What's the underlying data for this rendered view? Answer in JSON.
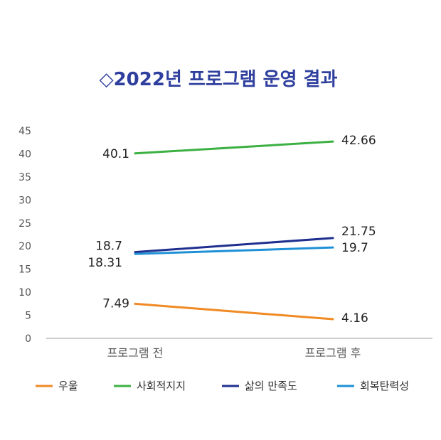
{
  "chart_data": {
    "type": "line",
    "title": "◇2022년 프로그램 운영 결과",
    "categories": [
      "프로그램 전",
      "프로그램 후"
    ],
    "ylim": [
      0,
      45
    ],
    "yticks": [
      0,
      5,
      10,
      15,
      20,
      25,
      30,
      35,
      40,
      45
    ],
    "grid": false,
    "legend_position": "bottom",
    "series": [
      {
        "name": "우울",
        "values": [
          7.49,
          4.16
        ],
        "color": "#f08a24"
      },
      {
        "name": "사회적지지",
        "values": [
          40.1,
          42.66
        ],
        "color": "#3cb043"
      },
      {
        "name": "삶의 만족도",
        "values": [
          18.7,
          21.75
        ],
        "color": "#1f2f8f"
      },
      {
        "name": "회복탄력성",
        "values": [
          18.31,
          19.7
        ],
        "color": "#1e90d6"
      }
    ]
  }
}
